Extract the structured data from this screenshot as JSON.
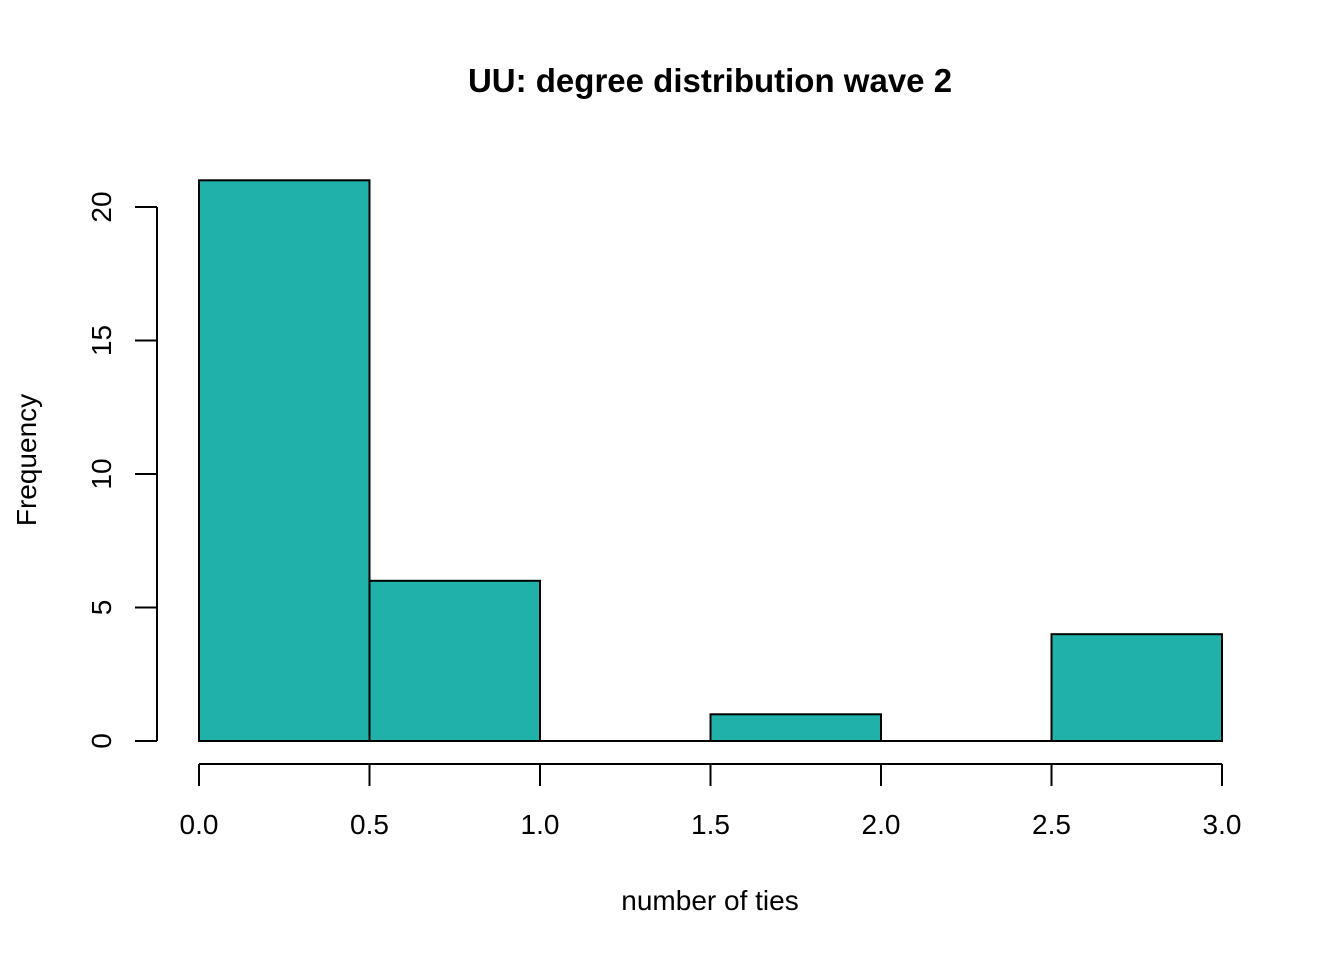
{
  "chart_data": {
    "type": "bar",
    "title": "UU: degree distribution wave 2",
    "xlabel": "number of ties",
    "ylabel": "Frequency",
    "bins": [
      {
        "x0": 0.0,
        "x1": 0.5,
        "count": 21
      },
      {
        "x0": 0.5,
        "x1": 1.0,
        "count": 6
      },
      {
        "x0": 1.0,
        "x1": 1.5,
        "count": 0
      },
      {
        "x0": 1.5,
        "x1": 2.0,
        "count": 1
      },
      {
        "x0": 2.0,
        "x1": 2.5,
        "count": 0
      },
      {
        "x0": 2.5,
        "x1": 3.0,
        "count": 4
      }
    ],
    "xticks": [
      "0.0",
      "0.5",
      "1.0",
      "1.5",
      "2.0",
      "2.5",
      "3.0"
    ],
    "yticks": [
      "0",
      "5",
      "10",
      "15",
      "20"
    ],
    "xlim": [
      0,
      3
    ],
    "ylim": [
      0,
      20
    ],
    "bar_color": "#20b2aa",
    "grid": false,
    "legend": "none"
  }
}
